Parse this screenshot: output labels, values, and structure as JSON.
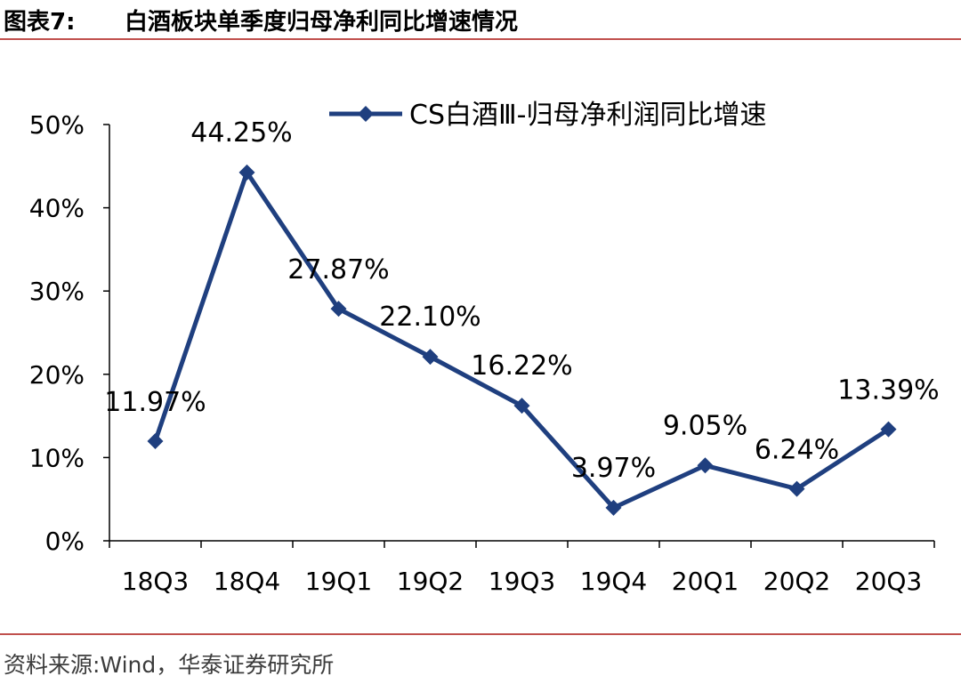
{
  "header": {
    "figure_label": "图表7:",
    "title": "白酒板块单季度归母净利同比增速情况"
  },
  "footer": {
    "source": "资料来源:Wind，华泰证券研究所"
  },
  "colors": {
    "series": "#1f3f7f",
    "rule": "#c0504d",
    "axis": "#000000"
  },
  "chart_data": {
    "type": "line",
    "title": "",
    "xlabel": "",
    "ylabel": "",
    "categories": [
      "18Q3",
      "18Q4",
      "19Q1",
      "19Q2",
      "19Q3",
      "19Q4",
      "20Q1",
      "20Q2",
      "20Q3"
    ],
    "y_ticks": [
      "0%",
      "10%",
      "20%",
      "30%",
      "40%",
      "50%"
    ],
    "ylim": [
      0,
      50
    ],
    "grid": false,
    "legend_position": "top-right",
    "series": [
      {
        "name": "CS白酒Ⅲ-归母净利润同比增速",
        "values": [
          11.97,
          44.25,
          27.87,
          22.1,
          16.22,
          3.97,
          9.05,
          6.24,
          13.39
        ],
        "data_labels": [
          "11.97%",
          "44.25%",
          "27.87%",
          "22.10%",
          "16.22%",
          "3.97%",
          "9.05%",
          "6.24%",
          "13.39%"
        ],
        "marker": "diamond"
      }
    ]
  }
}
